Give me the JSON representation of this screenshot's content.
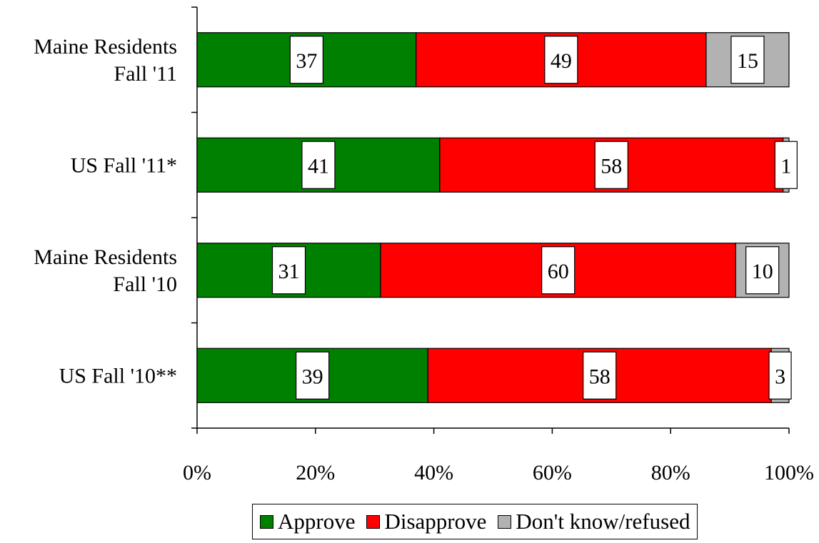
{
  "chart_data": {
    "type": "bar",
    "orientation": "horizontal",
    "stacked": true,
    "categories": [
      [
        "Maine Residents",
        "Fall '11"
      ],
      [
        "US Fall '11*"
      ],
      [
        "Maine Residents",
        "Fall '10"
      ],
      [
        "US Fall '10**"
      ]
    ],
    "series": [
      {
        "name": "Approve",
        "color": "#008000",
        "values": [
          37,
          41,
          31,
          39
        ]
      },
      {
        "name": "Disapprove",
        "color": "#ff0000",
        "values": [
          49,
          58,
          60,
          58
        ]
      },
      {
        "name": "Don't know/refused",
        "color": "#b2b2b2",
        "values": [
          15,
          1,
          10,
          3
        ]
      }
    ],
    "xlim": [
      0,
      100
    ],
    "xticks": [
      "0%",
      "20%",
      "40%",
      "60%",
      "80%",
      "100%"
    ],
    "grid": false,
    "legend_position": "bottom"
  }
}
